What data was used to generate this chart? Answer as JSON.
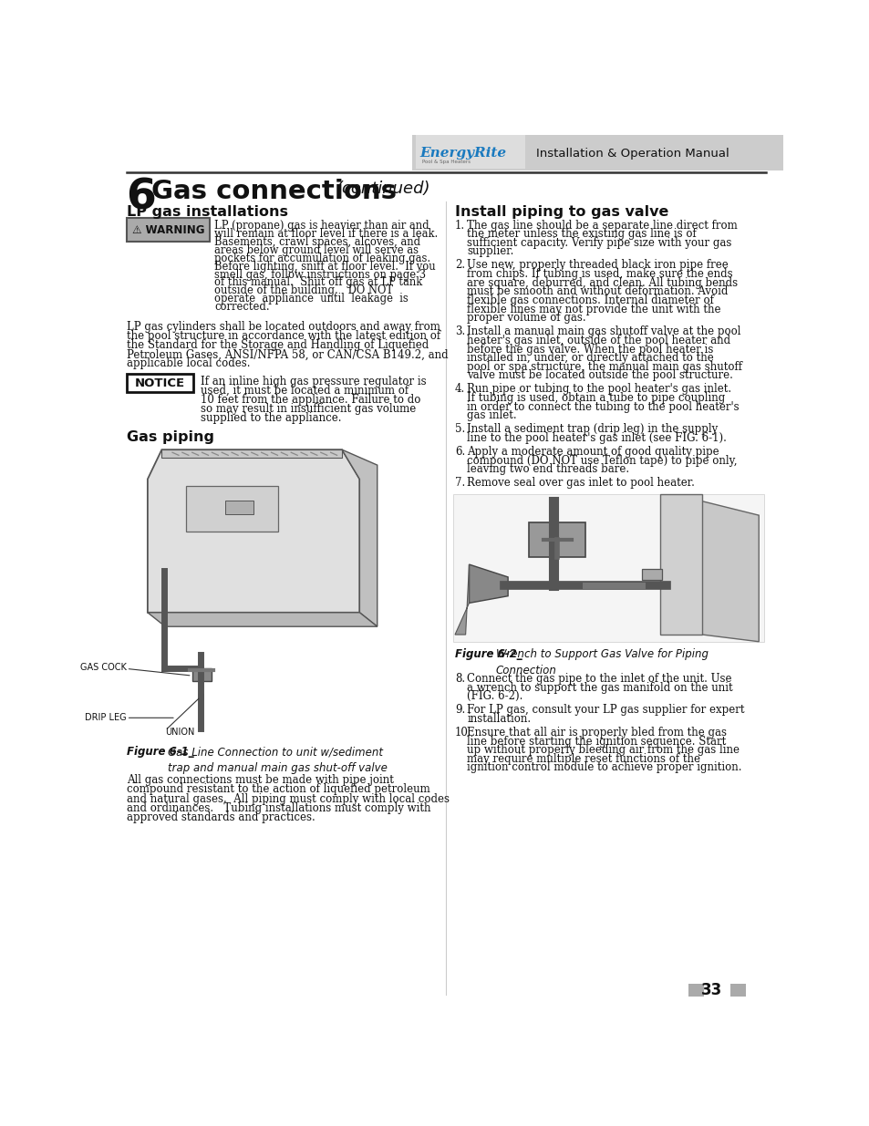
{
  "page_bg": "#ffffff",
  "header_bg": "#d3d3d3",
  "header_text": "Installation & Operation Manual",
  "header_text_color": "#000000",
  "logo_text": "EnergyRite",
  "logo_color": "#1a7abf",
  "chapter_num": "6",
  "chapter_title": "Gas connections",
  "chapter_subtitle": "(continued)",
  "left_col_title": "LP gas installations",
  "warning_box_bg": "#aaaaaa",
  "warning_box_text": "⚠ WARNING",
  "right_col_title": "Install piping to gas valve",
  "notice_box_text": "NOTICE",
  "gas_piping_title": "Gas piping",
  "fig1_caption_bold": "Figure 6-1_",
  "fig1_caption_rest": "Gas Line Connection to unit w/sediment\ntrap and manual main gas shut-off valve",
  "fig2_caption_bold": "Figure 6-2_",
  "fig2_caption_rest": "Wrench to Support Gas Valve for Piping\nConnection",
  "install_items": [
    "The gas line should be a separate line direct from the meter unless the existing gas line is of sufficient capacity. Verify pipe size with your gas supplier.",
    "Use new, properly threaded black iron pipe free from chips.  If tubing is used, make sure the ends are square, deburred, and clean.  All tubing bends must be smooth and without deformation.  Avoid flexible gas connections. Internal diameter of flexible lines may not provide the unit with the proper volume of gas.",
    "Install a manual main gas shutoff valve at the pool heater's gas inlet, outside of the pool heater and before the gas valve.  When the pool heater is installed in, under, or directly attached to the pool or spa structure, the manual main gas shutoff valve must be located outside the pool structure.",
    "Run pipe or tubing to the pool heater's gas inlet.  If tubing is used, obtain a tube to pipe coupling in order to connect the tubing to the pool heater's gas inlet.",
    "Install a sediment trap (drip leg) in the supply line to the pool heater's gas inlet (see FIG. 6-1).",
    "Apply  a  moderate  amount  of  good  quality  pipe compound  (DO NOT  use  Teflon  tape)  to  pipe  only, leaving two end threads bare.",
    "Remove seal over gas inlet to pool heater."
  ],
  "bottom_items": [
    "Connect the gas pipe to the inlet of the unit.  Use a wrench to support the gas manifold on the unit (FIG. 6-2).",
    "For LP gas, consult your LP gas supplier for expert installation.",
    "Ensure that all air is properly bled from the gas line before starting the ignition sequence.  Start up without properly bleeding air from the gas line may require multiple reset functions of the ignition control module to achieve proper ignition."
  ],
  "warning_lines": [
    "LP (propane) gas is heavier than air and",
    "will remain at floor level if there is a leak.",
    "Basements, crawl spaces, alcoves, and",
    "areas below ground level will serve as",
    "pockets for accumulation of leaking gas.",
    "Before lighting, sniff at floor level.  If you",
    "smell gas, follow instructions on page 3",
    "of this manual.  Shut off gas at LP tank",
    "outside of the building.   DO NOT",
    "operate  appliance  until  leakage  is",
    "corrected."
  ],
  "lp_lines": [
    "LP gas cylinders shall be located outdoors and away from",
    "the pool structure in accordance with the latest edition of",
    "the Standard for the Storage and Handling of Liquefied",
    "Petroleum Gases, ANSI/NFPA 58, or CAN/CSA B149.2, and",
    "applicable local codes."
  ],
  "notice_lines": [
    "If an inline high gas pressure regulator is",
    "used, it must be located a minimum of",
    "10 feet from the appliance. Failure to do",
    "so may result in insufficient gas volume",
    "supplied to the appliance."
  ],
  "bottom_left_lines": [
    "All gas connections must be made with pipe joint",
    "compound resistant to the action of liquefied petroleum",
    "and natural gases.  All piping must comply with local codes",
    "and ordinances.   Tubing installations must comply with",
    "approved standards and practices."
  ],
  "page_num": "33",
  "divider_color": "#333333",
  "text_color": "#111111"
}
